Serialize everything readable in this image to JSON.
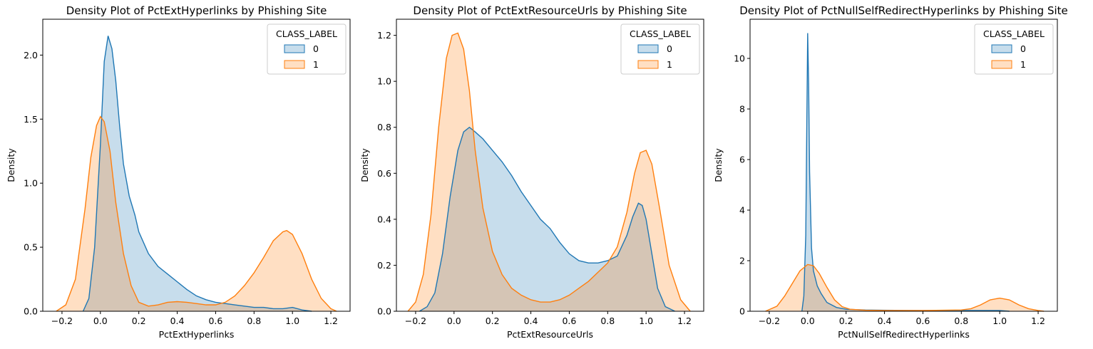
{
  "chart_data": [
    {
      "type": "area",
      "title": "Density Plot of PctExtHyperlinks by Phishing Site",
      "xlabel": "PctExtHyperlinks",
      "ylabel": "Density",
      "xlim": [
        -0.3,
        1.3
      ],
      "ylim": [
        0,
        2.28
      ],
      "xticks": [
        -0.2,
        0.0,
        0.2,
        0.4,
        0.6,
        0.8,
        1.0,
        1.2
      ],
      "yticks": [
        0.0,
        0.5,
        1.0,
        1.5,
        2.0
      ],
      "xtick_labels": [
        "−0.2",
        "0.0",
        "0.2",
        "0.4",
        "0.6",
        "0.8",
        "1.0",
        "1.2"
      ],
      "ytick_labels": [
        "0.0",
        "0.5",
        "1.0",
        "1.5",
        "2.0"
      ],
      "legend": {
        "title": "CLASS_LABEL",
        "position": "top-right",
        "entries": [
          "0",
          "1"
        ]
      },
      "series": [
        {
          "name": "0",
          "color": "#1f77b4",
          "x": [
            -0.09,
            -0.06,
            -0.03,
            0.0,
            0.02,
            0.04,
            0.06,
            0.08,
            0.1,
            0.12,
            0.15,
            0.18,
            0.2,
            0.25,
            0.3,
            0.35,
            0.4,
            0.45,
            0.5,
            0.55,
            0.6,
            0.65,
            0.7,
            0.75,
            0.8,
            0.85,
            0.9,
            0.95,
            1.0,
            1.05,
            1.1
          ],
          "y": [
            0.0,
            0.1,
            0.5,
            1.3,
            1.95,
            2.15,
            2.05,
            1.8,
            1.45,
            1.15,
            0.9,
            0.75,
            0.62,
            0.45,
            0.35,
            0.29,
            0.23,
            0.17,
            0.12,
            0.09,
            0.07,
            0.06,
            0.05,
            0.04,
            0.03,
            0.03,
            0.02,
            0.02,
            0.03,
            0.01,
            0.0
          ]
        },
        {
          "name": "1",
          "color": "#ff7f0e",
          "x": [
            -0.23,
            -0.18,
            -0.13,
            -0.08,
            -0.05,
            -0.02,
            0.0,
            0.02,
            0.05,
            0.08,
            0.12,
            0.16,
            0.2,
            0.25,
            0.3,
            0.35,
            0.4,
            0.45,
            0.5,
            0.55,
            0.6,
            0.65,
            0.7,
            0.75,
            0.8,
            0.85,
            0.9,
            0.95,
            0.97,
            1.0,
            1.05,
            1.1,
            1.15,
            1.2,
            1.23
          ],
          "y": [
            0.0,
            0.05,
            0.25,
            0.8,
            1.2,
            1.45,
            1.52,
            1.48,
            1.25,
            0.85,
            0.45,
            0.2,
            0.07,
            0.04,
            0.05,
            0.07,
            0.075,
            0.07,
            0.06,
            0.05,
            0.05,
            0.07,
            0.12,
            0.2,
            0.3,
            0.42,
            0.55,
            0.62,
            0.63,
            0.6,
            0.45,
            0.25,
            0.1,
            0.02,
            0.0
          ]
        }
      ]
    },
    {
      "type": "area",
      "title": "Density Plot of PctExtResourceUrls by Phishing Site",
      "xlabel": "PctExtResourceUrls",
      "ylabel": "Density",
      "xlim": [
        -0.3,
        1.3
      ],
      "ylim": [
        0,
        1.27
      ],
      "xticks": [
        -0.2,
        0.0,
        0.2,
        0.4,
        0.6,
        0.8,
        1.0,
        1.2
      ],
      "yticks": [
        0.0,
        0.2,
        0.4,
        0.6,
        0.8,
        1.0,
        1.2
      ],
      "xtick_labels": [
        "−0.2",
        "0.0",
        "0.2",
        "0.4",
        "0.6",
        "0.8",
        "1.0",
        "1.2"
      ],
      "ytick_labels": [
        "0.0",
        "0.2",
        "0.4",
        "0.6",
        "0.8",
        "1.0",
        "1.2"
      ],
      "legend": {
        "title": "CLASS_LABEL",
        "position": "top-right",
        "entries": [
          "0",
          "1"
        ]
      },
      "series": [
        {
          "name": "0",
          "color": "#1f77b4",
          "x": [
            -0.18,
            -0.14,
            -0.1,
            -0.06,
            -0.02,
            0.02,
            0.05,
            0.08,
            0.11,
            0.15,
            0.2,
            0.25,
            0.3,
            0.35,
            0.4,
            0.45,
            0.5,
            0.55,
            0.6,
            0.65,
            0.7,
            0.75,
            0.8,
            0.85,
            0.9,
            0.93,
            0.96,
            0.98,
            1.0,
            1.03,
            1.06,
            1.1,
            1.15
          ],
          "y": [
            0.0,
            0.02,
            0.08,
            0.25,
            0.5,
            0.7,
            0.78,
            0.8,
            0.78,
            0.75,
            0.7,
            0.65,
            0.59,
            0.52,
            0.46,
            0.4,
            0.36,
            0.3,
            0.25,
            0.22,
            0.21,
            0.21,
            0.22,
            0.24,
            0.33,
            0.41,
            0.47,
            0.46,
            0.4,
            0.25,
            0.1,
            0.02,
            0.0
          ]
        },
        {
          "name": "1",
          "color": "#ff7f0e",
          "x": [
            -0.24,
            -0.2,
            -0.16,
            -0.12,
            -0.08,
            -0.04,
            -0.01,
            0.02,
            0.05,
            0.08,
            0.11,
            0.15,
            0.2,
            0.25,
            0.3,
            0.35,
            0.4,
            0.45,
            0.5,
            0.55,
            0.6,
            0.65,
            0.7,
            0.75,
            0.8,
            0.85,
            0.9,
            0.94,
            0.97,
            1.0,
            1.03,
            1.07,
            1.12,
            1.18,
            1.23
          ],
          "y": [
            0.0,
            0.04,
            0.16,
            0.42,
            0.8,
            1.1,
            1.2,
            1.21,
            1.14,
            0.96,
            0.7,
            0.45,
            0.26,
            0.16,
            0.1,
            0.07,
            0.05,
            0.04,
            0.04,
            0.05,
            0.07,
            0.1,
            0.13,
            0.17,
            0.21,
            0.28,
            0.43,
            0.6,
            0.69,
            0.7,
            0.64,
            0.45,
            0.2,
            0.05,
            0.0
          ]
        }
      ]
    },
    {
      "type": "area",
      "title": "Density Plot of PctNullSelfRedirectHyperlinks by Phishing Site",
      "xlabel": "PctNullSelfRedirectHyperlinks",
      "ylabel": "Density",
      "xlim": [
        -0.3,
        1.3
      ],
      "ylim": [
        0,
        11.55
      ],
      "xticks": [
        -0.2,
        0.0,
        0.2,
        0.4,
        0.6,
        0.8,
        1.0,
        1.2
      ],
      "yticks": [
        0,
        2,
        4,
        6,
        8,
        10
      ],
      "xtick_labels": [
        "−0.2",
        "0.0",
        "0.2",
        "0.4",
        "0.6",
        "0.8",
        "1.0",
        "1.2"
      ],
      "ytick_labels": [
        "0",
        "2",
        "4",
        "6",
        "8",
        "10"
      ],
      "legend": {
        "title": "CLASS_LABEL",
        "position": "top-right",
        "entries": [
          "0",
          "1"
        ]
      },
      "series": [
        {
          "name": "0",
          "color": "#1f77b4",
          "x": [
            -0.03,
            -0.02,
            -0.01,
            -0.005,
            0.0,
            0.005,
            0.01,
            0.02,
            0.03,
            0.05,
            0.07,
            0.1,
            0.15,
            0.2,
            0.3,
            0.4,
            0.6,
            0.8,
            1.0,
            1.05
          ],
          "y": [
            0.0,
            0.6,
            3.0,
            7.0,
            11.0,
            9.0,
            5.5,
            2.5,
            1.6,
            1.0,
            0.7,
            0.35,
            0.15,
            0.08,
            0.05,
            0.04,
            0.03,
            0.03,
            0.03,
            0.0
          ]
        },
        {
          "name": "1",
          "color": "#ff7f0e",
          "x": [
            -0.22,
            -0.16,
            -0.12,
            -0.08,
            -0.04,
            0.0,
            0.03,
            0.06,
            0.1,
            0.14,
            0.18,
            0.22,
            0.3,
            0.4,
            0.6,
            0.8,
            0.85,
            0.9,
            0.95,
            1.0,
            1.05,
            1.1,
            1.15,
            1.2,
            1.23
          ],
          "y": [
            0.0,
            0.2,
            0.6,
            1.1,
            1.6,
            1.85,
            1.8,
            1.5,
            0.95,
            0.45,
            0.18,
            0.08,
            0.04,
            0.03,
            0.03,
            0.05,
            0.1,
            0.25,
            0.45,
            0.52,
            0.45,
            0.25,
            0.1,
            0.03,
            0.0
          ]
        }
      ]
    }
  ]
}
